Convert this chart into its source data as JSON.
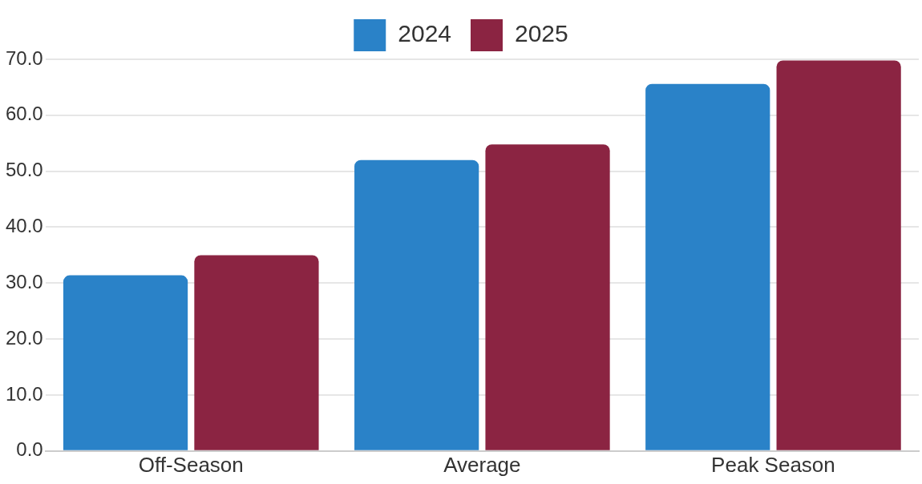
{
  "chart_data": {
    "type": "bar",
    "categories": [
      "Off-Season",
      "Average",
      "Peak Season"
    ],
    "series": [
      {
        "name": "2024",
        "color": "#2a82c8",
        "values": [
          31.4,
          52.0,
          65.6
        ]
      },
      {
        "name": "2025",
        "color": "#8b2442",
        "values": [
          35.0,
          54.8,
          69.8
        ]
      }
    ],
    "ylim": [
      0,
      70
    ],
    "yticks": [
      {
        "value": 0,
        "label": "0.0"
      },
      {
        "value": 10,
        "label": "10.0"
      },
      {
        "value": 20,
        "label": "20.0"
      },
      {
        "value": 30,
        "label": "30.0"
      },
      {
        "value": 40,
        "label": "40.0"
      },
      {
        "value": 50,
        "label": "50.0"
      },
      {
        "value": 60,
        "label": "60.0"
      },
      {
        "value": 70,
        "label": "70.0"
      }
    ],
    "grid": "y",
    "legend": "top"
  }
}
